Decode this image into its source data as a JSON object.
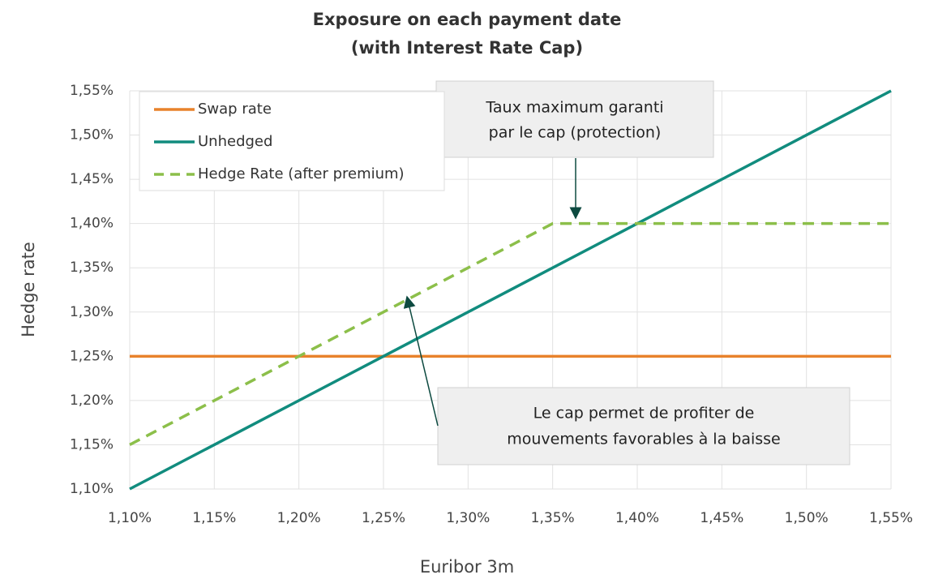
{
  "chart_data": {
    "type": "line",
    "title": [
      "Exposure on each payment date",
      "(with Interest Rate Cap)"
    ],
    "xlabel": "Euribor 3m",
    "ylabel": "Hedge rate",
    "xlim": [
      1.1,
      1.55
    ],
    "ylim": [
      1.1,
      1.55
    ],
    "xticks": [
      {
        "value": 1.1,
        "label": "1,10%"
      },
      {
        "value": 1.15,
        "label": "1,15%"
      },
      {
        "value": 1.2,
        "label": "1,20%"
      },
      {
        "value": 1.25,
        "label": "1,25%"
      },
      {
        "value": 1.3,
        "label": "1,30%"
      },
      {
        "value": 1.35,
        "label": "1,35%"
      },
      {
        "value": 1.4,
        "label": "1,40%"
      },
      {
        "value": 1.45,
        "label": "1,45%"
      },
      {
        "value": 1.5,
        "label": "1,50%"
      },
      {
        "value": 1.55,
        "label": "1,55%"
      }
    ],
    "yticks": [
      {
        "value": 1.1,
        "label": "1,10%"
      },
      {
        "value": 1.15,
        "label": "1,15%"
      },
      {
        "value": 1.2,
        "label": "1,20%"
      },
      {
        "value": 1.25,
        "label": "1,25%"
      },
      {
        "value": 1.3,
        "label": "1,30%"
      },
      {
        "value": 1.35,
        "label": "1,35%"
      },
      {
        "value": 1.4,
        "label": "1,40%"
      },
      {
        "value": 1.45,
        "label": "1,45%"
      },
      {
        "value": 1.5,
        "label": "1,50%"
      },
      {
        "value": 1.55,
        "label": "1,55%"
      }
    ],
    "grid": true,
    "legend": "upper left",
    "series": [
      {
        "name": "Swap rate",
        "color": "#e8822c",
        "dashed": false,
        "x": [
          1.1,
          1.55
        ],
        "values": [
          1.25,
          1.25
        ]
      },
      {
        "name": "Unhedged",
        "color": "#118c7e",
        "dashed": false,
        "x": [
          1.1,
          1.55
        ],
        "values": [
          1.1,
          1.55
        ]
      },
      {
        "name": "Hedge Rate (after premium)",
        "color": "#8cbf4a",
        "dashed": true,
        "x": [
          1.1,
          1.35,
          1.55
        ],
        "values": [
          1.15,
          1.4,
          1.4
        ]
      }
    ],
    "annotations": [
      {
        "text": [
          "Taux maximum garanti",
          "par le cap (protection)"
        ]
      },
      {
        "text": [
          "Le cap permet de profiter de",
          "mouvements favorables à la baisse"
        ]
      }
    ]
  }
}
